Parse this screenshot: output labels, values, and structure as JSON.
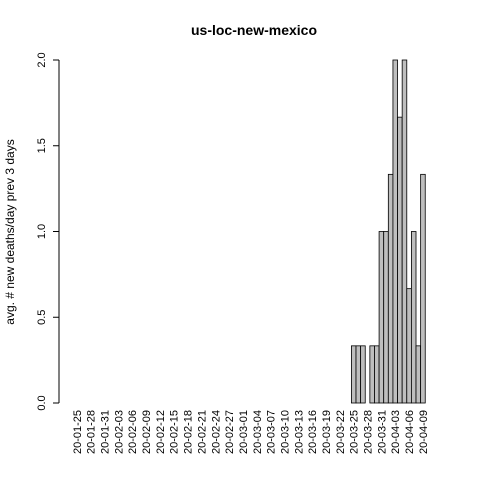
{
  "chart_data": {
    "type": "bar",
    "title": "us-loc-new-mexico",
    "xlabel": "",
    "ylabel": "avg. # new deaths/day prev  3  days",
    "ylim": [
      0,
      2
    ],
    "yticks": [
      "0.0",
      "0.5",
      "1.0",
      "1.5",
      "2.0"
    ],
    "start_date": "2020-01-25",
    "tick_labels": [
      "20-01-25",
      "20-01-28",
      "20-01-31",
      "20-02-03",
      "20-02-06",
      "20-02-09",
      "20-02-12",
      "20-02-15",
      "20-02-18",
      "20-02-21",
      "20-02-24",
      "20-02-27",
      "20-03-01",
      "20-03-04",
      "20-03-07",
      "20-03-10",
      "20-03-13",
      "20-03-16",
      "20-03-19",
      "20-03-22",
      "20-03-25",
      "20-03-28",
      "20-03-31",
      "20-04-03",
      "20-04-06",
      "20-04-09"
    ],
    "values": [
      0,
      0,
      0,
      0,
      0,
      0,
      0,
      0,
      0,
      0,
      0,
      0,
      0,
      0,
      0,
      0,
      0,
      0,
      0,
      0,
      0,
      0,
      0,
      0,
      0,
      0,
      0,
      0,
      0,
      0,
      0,
      0,
      0,
      0,
      0,
      0,
      0,
      0,
      0,
      0,
      0,
      0,
      0,
      0,
      0,
      0,
      0,
      0,
      0,
      0,
      0,
      0,
      0,
      0,
      0,
      0,
      0,
      0,
      0,
      0,
      0.3333,
      0.3333,
      0.3333,
      0,
      0.3333,
      0.3333,
      1,
      1,
      1.3333,
      2,
      1.6667,
      2,
      0.6667,
      1,
      0.3333,
      1.3333
    ],
    "bar_fill": "#bebebe",
    "bar_stroke": "#000000",
    "grid": false,
    "legend": "none"
  }
}
